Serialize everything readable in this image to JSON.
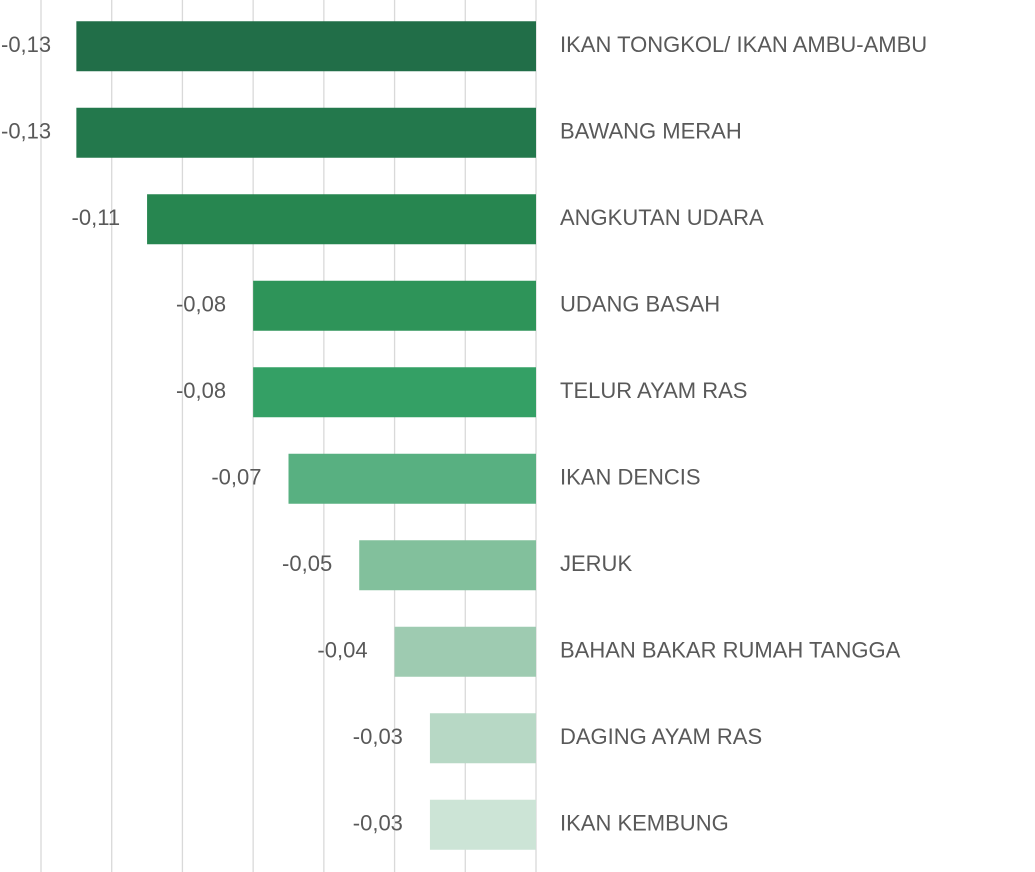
{
  "chart_data": {
    "type": "hbar",
    "categories": [
      "IKAN TONGKOL/ IKAN AMBU-AMBU",
      "BAWANG MERAH",
      "ANGKUTAN UDARA",
      "UDANG BASAH",
      "TELUR AYAM RAS",
      "IKAN DENCIS",
      "JERUK",
      "BAHAN BAKAR RUMAH TANGGA",
      "DAGING AYAM RAS",
      "IKAN KEMBUNG"
    ],
    "values": [
      -0.13,
      -0.13,
      -0.11,
      -0.08,
      -0.08,
      -0.07,
      -0.05,
      -0.04,
      -0.03,
      -0.03
    ],
    "value_labels": [
      "-0,13",
      "-0,13",
      "-0,11",
      "-0,08",
      "-0,08",
      "-0,07",
      "-0,05",
      "-0,04",
      "-0,03",
      "-0,03"
    ],
    "colors": [
      "#216e48",
      "#23784c",
      "#278650",
      "#2e9459",
      "#34a065",
      "#58b081",
      "#82c09c",
      "#9ecbb1",
      "#b7d8c5",
      "#cce4d6"
    ],
    "xlim": [
      -0.14,
      0
    ],
    "xticks": [
      -0.14,
      -0.12,
      -0.1,
      -0.08,
      -0.06,
      -0.04,
      -0.02,
      0
    ],
    "grid": true
  }
}
